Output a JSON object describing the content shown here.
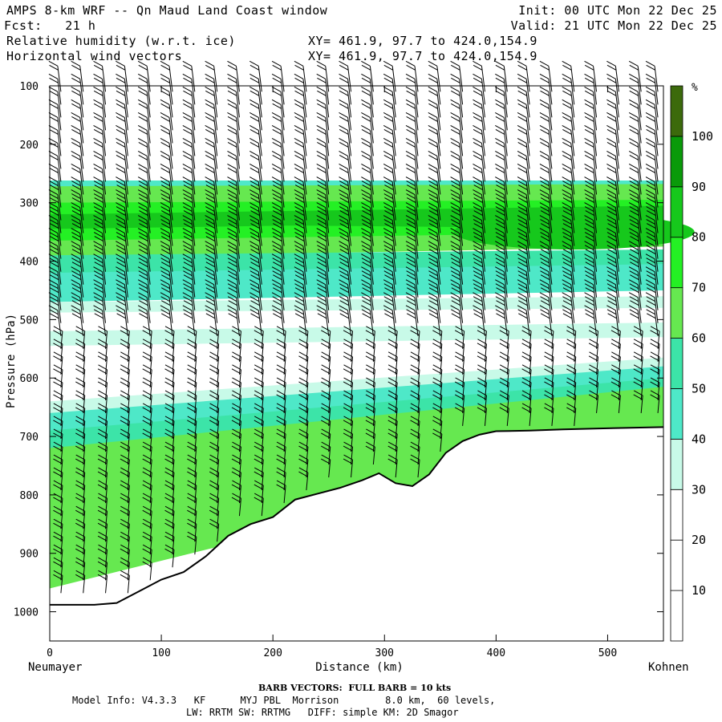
{
  "header": {
    "title": "AMPS 8-km WRF -- Qn Maud Land Coast window",
    "forecast": "Fcst:   21 h",
    "init": "Init: 00 UTC Mon 22 Dec 25",
    "valid": "Valid: 21 UTC Mon 22 Dec 25",
    "field1": "Relative humidity (w.r.t. ice)",
    "field2": "Horizontal wind vectors",
    "xy1": "XY= 461.9, 97.7 to 424.0,154.9",
    "xy2": "XY= 461.9, 97.7 to 424.0,154.9"
  },
  "footer": {
    "barb_note": "BARB VECTORS:  FULL BARB = 10 kts",
    "model_info": "Model Info: V4.3.3   KF      MYJ PBL  Morrison        8.0 km,  60 levels,",
    "model_info2": "LW: RRTM SW: RRTMG   DIFF: simple KM: 2D Smagor"
  },
  "chart_data": {
    "type": "heatmap",
    "title": "Relative humidity (w.r.t. ice) and horizontal wind vectors cross-section",
    "xlabel": "Distance (km)",
    "ylabel": "Pressure (hPa)",
    "xlim": [
      0,
      550
    ],
    "ylim": [
      1050,
      100
    ],
    "x_ticks": [
      0,
      100,
      200,
      300,
      400,
      500
    ],
    "y_ticks": [
      100,
      200,
      300,
      400,
      500,
      600,
      700,
      800,
      900,
      1000
    ],
    "x_endpoint_labels": {
      "left": "Neumayer",
      "right": "Kohnen"
    },
    "colorbar": {
      "unit": "%",
      "levels": [
        10,
        20,
        30,
        40,
        50,
        60,
        70,
        80,
        90,
        100
      ],
      "colors": [
        "#ffffff",
        "#ffffff",
        "#ffffff",
        "#c8fae8",
        "#4ee8c8",
        "#3ce4a8",
        "#66e850",
        "#24f024",
        "#16c81c",
        "#0a9a0a",
        "#3c6a0c"
      ]
    },
    "terrain": {
      "x": [
        0,
        20,
        40,
        60,
        80,
        100,
        120,
        140,
        160,
        180,
        200,
        220,
        240,
        260,
        280,
        295,
        310,
        325,
        340,
        355,
        370,
        385,
        400,
        430,
        460,
        500,
        550
      ],
      "p": [
        988,
        988,
        988,
        985,
        965,
        945,
        932,
        905,
        870,
        850,
        838,
        808,
        798,
        788,
        775,
        763,
        780,
        785,
        765,
        728,
        708,
        697,
        691,
        690,
        688,
        686,
        684
      ]
    },
    "rh_layers": [
      {
        "name": "upper_moist",
        "p_top": 262,
        "p_bottom": 440,
        "max_rh": 90,
        "max_location": "x 350-550 km near 340-360 hPa"
      },
      {
        "name": "mid_band",
        "p_top": 470,
        "p_bottom": 540,
        "rh": 30
      },
      {
        "name": "dry_layer",
        "p_range": [
          540,
          620
        ],
        "rh": 20
      },
      {
        "name": "lower_moist",
        "p_top_west": 660,
        "p_top_east": 570,
        "rh_range": [
          30,
          70
        ]
      }
    ],
    "wind_barbs": {
      "full_barb_kts": 10,
      "columns_km": [
        10,
        30,
        50,
        70,
        90,
        110,
        130,
        150,
        170,
        190,
        210,
        230,
        250,
        270,
        290,
        310,
        330,
        350,
        370,
        390,
        410,
        430,
        450,
        470,
        490,
        510,
        530,
        545
      ]
    }
  }
}
